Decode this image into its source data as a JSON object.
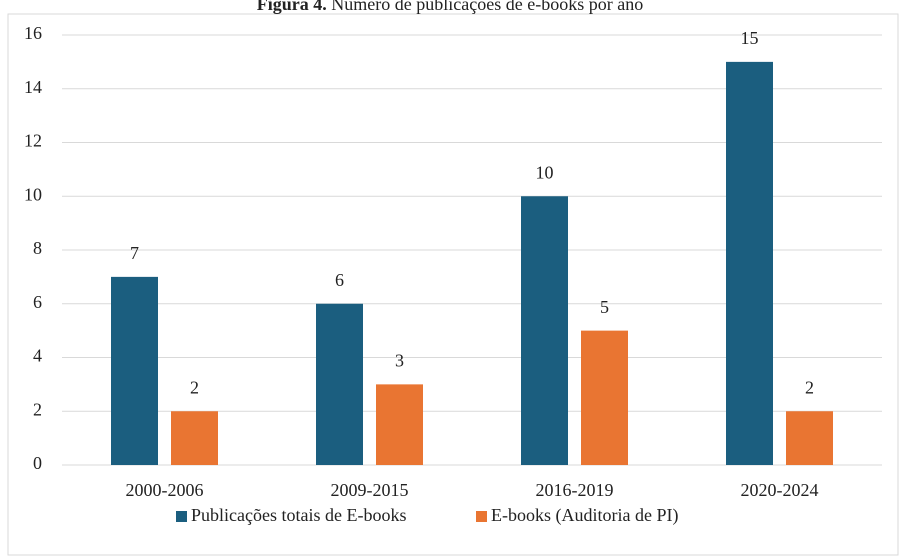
{
  "chart_data": {
    "type": "bar",
    "title_label": "Figura 4.",
    "title": "Número de publicações de e-books por ano",
    "categories": [
      "2000-2006",
      "2009-2015",
      "2016-2019",
      "2020-2024"
    ],
    "series": [
      {
        "name": "Publicações totais de E-books",
        "color": "#1b5e7f",
        "values": [
          7,
          6,
          10,
          15
        ]
      },
      {
        "name": "E-books (Auditoria de PI)",
        "color": "#e97532",
        "values": [
          2,
          3,
          5,
          2
        ]
      }
    ],
    "ylim": [
      0,
      16
    ],
    "yticks": [
      0,
      2,
      4,
      6,
      8,
      10,
      12,
      14,
      16
    ],
    "grid": true,
    "legend": "bottom"
  }
}
